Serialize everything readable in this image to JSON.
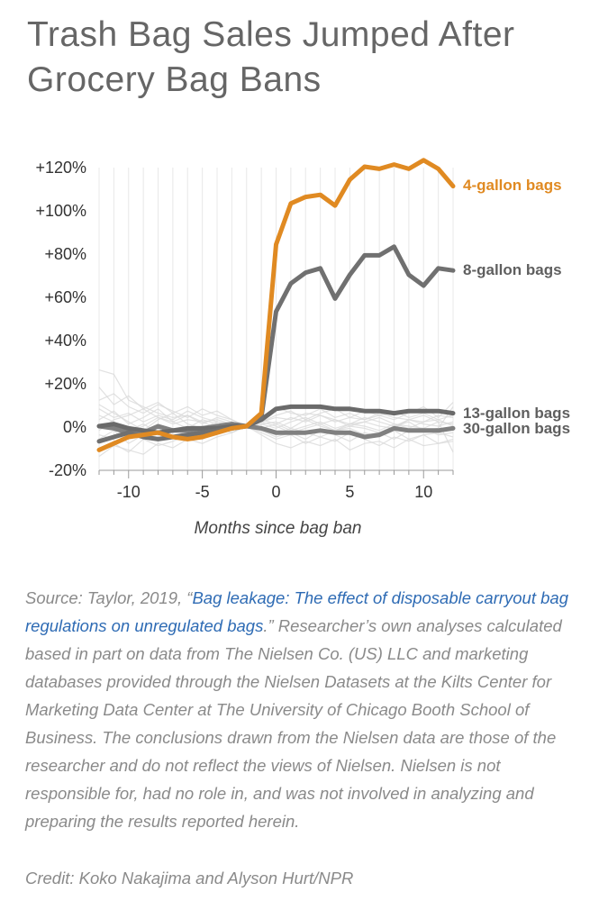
{
  "title": "Trash Bag Sales Jumped After Grocery Bag Bans",
  "chart_data": {
    "type": "line",
    "xlabel": "Months since bag ban",
    "ylabel": "",
    "xlim": [
      -12,
      12
    ],
    "ylim": [
      -20,
      125
    ],
    "xticks": [
      -10,
      -5,
      0,
      5,
      10
    ],
    "yticks": [
      -20,
      0,
      20,
      40,
      60,
      80,
      100,
      120
    ],
    "ytick_labels": [
      "-20%",
      "0%",
      "+20%",
      "+40%",
      "+60%",
      "+80%",
      "+100%",
      "+120%"
    ],
    "grid": "vertical",
    "x": [
      -12,
      -11,
      -10,
      -9,
      -8,
      -7,
      -6,
      -5,
      -4,
      -3,
      -2,
      -1,
      0,
      1,
      2,
      3,
      4,
      5,
      6,
      7,
      8,
      9,
      10,
      11,
      12
    ],
    "series": [
      {
        "name": "4-gallon bags",
        "color": "#e08a22",
        "values": [
          -11,
          -8,
          -5,
          -4,
          -3,
          -5,
          -6,
          -5,
          -3,
          -1,
          0,
          6,
          84,
          103,
          106,
          107,
          102,
          114,
          120,
          119,
          121,
          119,
          123,
          119,
          111
        ]
      },
      {
        "name": "8-gallon bags",
        "color": "#707070",
        "values": [
          -7,
          -5,
          -3,
          -5,
          -6,
          -5,
          -4,
          -3,
          -2,
          -1,
          0,
          4,
          53,
          66,
          71,
          73,
          59,
          70,
          79,
          79,
          83,
          70,
          65,
          73,
          72
        ]
      },
      {
        "name": "13-gallon bags",
        "color": "#6a6a6a",
        "values": [
          0,
          1,
          -1,
          -2,
          -3,
          -2,
          -1,
          -1,
          -1,
          0,
          0,
          3,
          8,
          9,
          9,
          9,
          8,
          8,
          7,
          7,
          6,
          7,
          7,
          7,
          6
        ]
      },
      {
        "name": "30-gallon bags",
        "color": "#808080",
        "values": [
          0,
          -1,
          -3,
          -3,
          0,
          -2,
          -2,
          -1,
          0,
          1,
          0,
          -1,
          -3,
          -3,
          -3,
          -2,
          -3,
          -3,
          -5,
          -4,
          -1,
          -2,
          -2,
          -2,
          -1
        ]
      }
    ],
    "background_series_color": "#d9d9d9",
    "background_series": [
      [
        5,
        2,
        -3,
        0,
        4,
        2,
        -1,
        3,
        1,
        -2,
        0,
        1,
        2,
        -1,
        3,
        0,
        -2,
        1,
        2,
        0,
        -1,
        3,
        1,
        0,
        2
      ],
      [
        -4,
        -6,
        -2,
        1,
        -3,
        -5,
        -2,
        0,
        -1,
        -3,
        0,
        -2,
        -4,
        -1,
        -3,
        -5,
        -2,
        -1,
        -4,
        -3,
        -6,
        -2,
        -1,
        -4,
        -3
      ],
      [
        26,
        24,
        12,
        9,
        6,
        4,
        5,
        2,
        3,
        1,
        0,
        2,
        4,
        3,
        6,
        5,
        2,
        4,
        3,
        6,
        4,
        3,
        2,
        5,
        4
      ],
      [
        12,
        15,
        9,
        6,
        10,
        7,
        4,
        8,
        5,
        3,
        0,
        3,
        1,
        4,
        2,
        5,
        3,
        1,
        4,
        2,
        0,
        3,
        5,
        2,
        1
      ],
      [
        -10,
        -8,
        -12,
        -6,
        -9,
        -7,
        -4,
        -6,
        -3,
        -2,
        0,
        -3,
        -6,
        -4,
        -8,
        -5,
        -7,
        -3,
        -6,
        -9,
        -5,
        -7,
        -4,
        -8,
        -6
      ],
      [
        8,
        4,
        6,
        2,
        5,
        3,
        7,
        4,
        2,
        1,
        0,
        4,
        9,
        6,
        5,
        8,
        4,
        6,
        3,
        5,
        7,
        4,
        6,
        3,
        5
      ],
      [
        18,
        10,
        14,
        8,
        11,
        6,
        9,
        5,
        7,
        3,
        0,
        -2,
        -5,
        -3,
        -6,
        -2,
        -4,
        -7,
        -3,
        -5,
        -2,
        -6,
        -4,
        -3,
        -5
      ],
      [
        -6,
        -2,
        -8,
        -4,
        -1,
        -5,
        -3,
        -6,
        -2,
        -1,
        0,
        -4,
        -8,
        -10,
        -7,
        -9,
        -6,
        -11,
        -8,
        -7,
        -10,
        -6,
        -9,
        -8,
        -7
      ],
      [
        3,
        7,
        1,
        4,
        8,
        2,
        5,
        1,
        4,
        2,
        0,
        2,
        5,
        7,
        3,
        6,
        8,
        4,
        7,
        5,
        3,
        6,
        9,
        4,
        11
      ],
      [
        -14,
        -9,
        -11,
        -13,
        -8,
        -10,
        -6,
        -8,
        -5,
        -3,
        0,
        -1,
        1,
        -2,
        0,
        2,
        -1,
        1,
        0,
        -2,
        1,
        0,
        -1,
        2,
        -12
      ],
      [
        10,
        6,
        2,
        -2,
        3,
        6,
        1,
        -1,
        2,
        0,
        0,
        1,
        -1,
        2,
        4,
        1,
        3,
        0,
        2,
        4,
        1,
        -1,
        2,
        3,
        0
      ],
      [
        -2,
        3,
        5,
        8,
        4,
        1,
        3,
        2,
        -1,
        1,
        0,
        2,
        0,
        -3,
        -1,
        1,
        -2,
        0,
        -1,
        -3,
        0,
        2,
        -2,
        -1,
        9
      ]
    ],
    "source_prefix": "Source: Taylor, 2019, “",
    "source_link_text": "Bag leakage: The effect of disposable carryout bag regulations on unregulated bags",
    "source_suffix": ".” Researcher’s own analyses calculated based in part on data from The Nielsen Co. (US) LLC and marketing databases provided through the Nielsen Datasets at the Kilts Center for Marketing Data Center at The University of Chicago Booth School of Business. The conclusions drawn from the Nielsen data are those of the researcher and do not reflect the views of Nielsen. Nielsen is not responsible for, had no role in, and was not involved in analyzing and preparing the results reported herein.",
    "credit": "Credit: Koko Nakajima and Alyson Hurt/NPR"
  }
}
